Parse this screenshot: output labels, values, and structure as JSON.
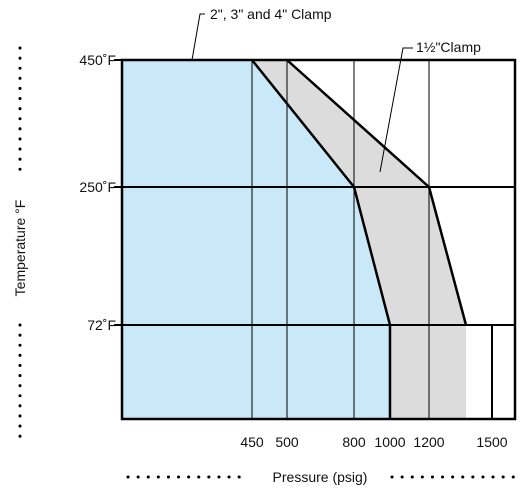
{
  "chart_data": {
    "type": "area",
    "title": "",
    "xlabel": "Pressure (psig)",
    "ylabel": "Temperature °F",
    "x_ticks": [
      {
        "value": 450,
        "label": "450"
      },
      {
        "value": 500,
        "label": "500"
      },
      {
        "value": 800,
        "label": "800"
      },
      {
        "value": 1000,
        "label": "1000"
      },
      {
        "value": 1200,
        "label": "1200"
      },
      {
        "value": 1500,
        "label": "1500"
      }
    ],
    "y_ticks": [
      {
        "value": 72,
        "label": "72˚F"
      },
      {
        "value": 250,
        "label": "250˚F"
      },
      {
        "value": 450,
        "label": "450˚F"
      }
    ],
    "series": [
      {
        "name": "2\", 3\" and 4\" Clamp",
        "color": "#c9e9f8",
        "points": [
          [
            0,
            450
          ],
          [
            450,
            450
          ],
          [
            800,
            250
          ],
          [
            1000,
            72
          ],
          [
            1000,
            0
          ]
        ]
      },
      {
        "name": "1½\"Clamp",
        "color": "#dcdcdc",
        "points": [
          [
            500,
            450
          ],
          [
            1200,
            250
          ],
          [
            1400,
            72
          ],
          [
            1400,
            0
          ]
        ]
      }
    ],
    "annotations": [
      {
        "text": "2\", 3\" and 4\" Clamp",
        "target": "2\", 3\" and 4\" Clamp"
      },
      {
        "text": "1½\"Clamp",
        "target": "1½\"Clamp"
      }
    ],
    "grid": true
  },
  "colors": {
    "blue_fill": "#c9e9f8",
    "gray_fill": "#dcdcdc",
    "line": "#000000"
  }
}
